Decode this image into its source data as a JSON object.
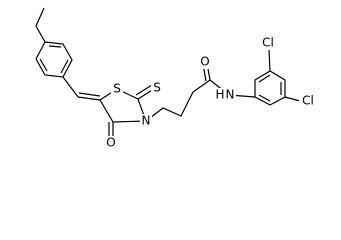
{
  "atoms": [
    {
      "label": "S"
    },
    {
      "label": "S"
    },
    {
      "label": "N"
    },
    {
      "label": "O"
    },
    {
      "label": "O"
    },
    {
      "label": "H"
    },
    {
      "label": "N"
    },
    {
      "label": "Cl"
    },
    {
      "label": "Cl"
    }
  ]
}
